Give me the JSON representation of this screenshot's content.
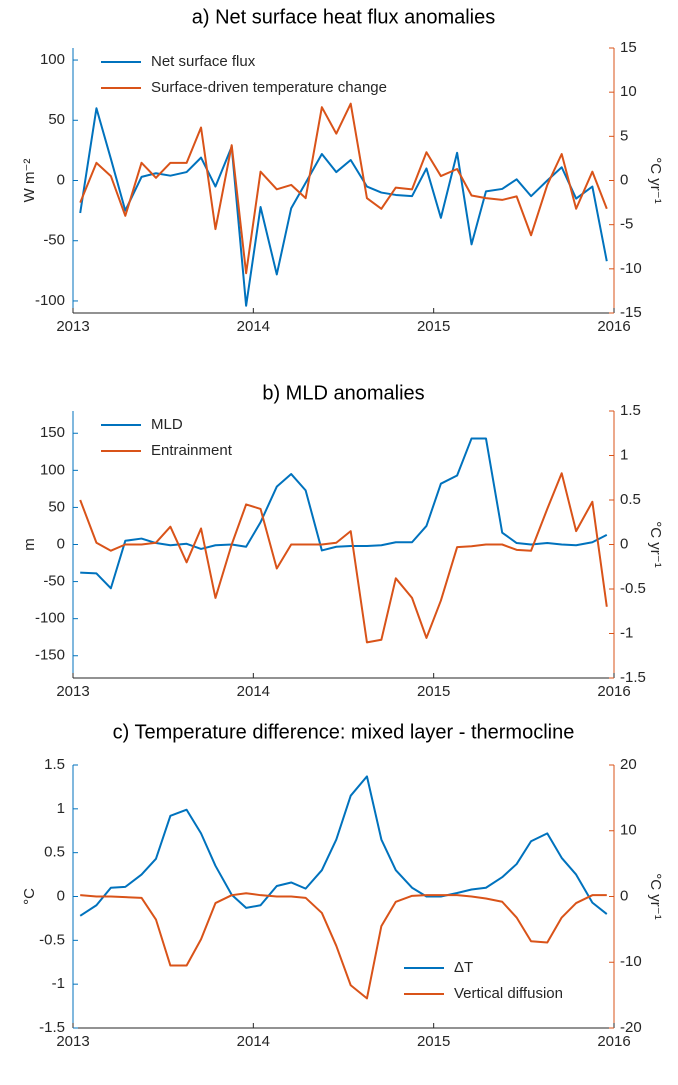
{
  "chart_data": [
    {
      "type": "line",
      "title": "a) Net surface heat flux anomalies",
      "ylabel": "W m⁻²",
      "y2label": "°C yr⁻¹",
      "x": [
        2013.04,
        2013.13,
        2013.21,
        2013.29,
        2013.38,
        2013.46,
        2013.54,
        2013.63,
        2013.71,
        2013.79,
        2013.88,
        2013.96,
        2014.04,
        2014.13,
        2014.21,
        2014.29,
        2014.38,
        2014.46,
        2014.54,
        2014.63,
        2014.71,
        2014.79,
        2014.88,
        2014.96,
        2015.04,
        2015.13,
        2015.21,
        2015.29,
        2015.38,
        2015.46,
        2015.54,
        2015.63,
        2015.71,
        2015.79,
        2015.88,
        2015.96
      ],
      "xlim": [
        2013,
        2016
      ],
      "xticks": [
        2013,
        2014,
        2015,
        2016
      ],
      "ylim": [
        -110,
        110
      ],
      "yticks": [
        -100,
        -50,
        0,
        50,
        100
      ],
      "y2lim": [
        -15,
        15
      ],
      "y2ticks": [
        -15,
        -10,
        -5,
        0,
        5,
        10,
        15
      ],
      "legend": "upper left",
      "series": [
        {
          "name": "Net surface flux",
          "color": "#0072BD",
          "values": [
            -27,
            60,
            18,
            -25,
            3,
            6,
            4,
            7,
            19,
            -5,
            28,
            -104,
            -22,
            -78,
            -23,
            -2,
            22,
            7,
            17,
            -5,
            -10,
            -12,
            -13,
            10,
            -31,
            23,
            -53,
            -9,
            -7,
            1,
            -13,
            0,
            11,
            -15,
            -5,
            -67
          ]
        },
        {
          "name": "Surface-driven temperature change",
          "color": "#D95319",
          "axis": "y2",
          "values": [
            -2.5,
            2,
            0.5,
            -4,
            2,
            0.3,
            2,
            2,
            6,
            -5.5,
            4,
            -10.5,
            1,
            -1,
            -0.5,
            -2,
            8.3,
            5.3,
            8.7,
            -2,
            -3.2,
            -0.8,
            -1,
            3.2,
            0.5,
            1.3,
            -1.7,
            -2,
            -2.2,
            -1.8,
            -6.2,
            -0.5,
            3,
            -3.2,
            1,
            -3.2
          ]
        }
      ]
    },
    {
      "type": "line",
      "title": "b) MLD anomalies",
      "ylabel": "m",
      "y2label": "°C yr⁻¹",
      "x": [
        2013.04,
        2013.13,
        2013.21,
        2013.29,
        2013.38,
        2013.46,
        2013.54,
        2013.63,
        2013.71,
        2013.79,
        2013.88,
        2013.96,
        2014.04,
        2014.13,
        2014.21,
        2014.29,
        2014.38,
        2014.46,
        2014.54,
        2014.63,
        2014.71,
        2014.79,
        2014.88,
        2014.96,
        2015.04,
        2015.13,
        2015.21,
        2015.29,
        2015.38,
        2015.46,
        2015.54,
        2015.63,
        2015.71,
        2015.79,
        2015.88,
        2015.96
      ],
      "xlim": [
        2013,
        2016
      ],
      "xticks": [
        2013,
        2014,
        2015,
        2016
      ],
      "ylim": [
        -180,
        180
      ],
      "yticks": [
        -150,
        -100,
        -50,
        0,
        50,
        100,
        150
      ],
      "y2lim": [
        -1.5,
        1.5
      ],
      "y2ticks": [
        -1.5,
        -1,
        -0.5,
        0,
        0.5,
        1,
        1.5
      ],
      "legend": "upper left",
      "series": [
        {
          "name": "MLD",
          "color": "#0072BD",
          "values": [
            -38,
            -39,
            -59,
            5,
            8,
            2,
            -1,
            1,
            -6,
            -1,
            0,
            -3,
            30,
            78,
            95,
            73,
            -8,
            -3,
            -2,
            -2,
            -1,
            3,
            3,
            25,
            82,
            93,
            143,
            143,
            16,
            2,
            0,
            2,
            0,
            -1,
            3,
            13
          ]
        },
        {
          "name": "Entrainment",
          "color": "#D95319",
          "axis": "y2",
          "values": [
            0.5,
            0.02,
            -0.07,
            0,
            0,
            0.02,
            0.2,
            -0.2,
            0.18,
            -0.6,
            0,
            0.45,
            0.4,
            -0.27,
            0,
            0,
            0,
            0.02,
            0.15,
            -1.1,
            -1.07,
            -0.38,
            -0.6,
            -1.05,
            -0.63,
            -0.03,
            -0.02,
            0,
            0,
            -0.06,
            -0.07,
            0.4,
            0.8,
            0.15,
            0.48,
            -0.7
          ]
        }
      ]
    },
    {
      "type": "line",
      "title": "c) Temperature difference: mixed layer - thermocline",
      "ylabel": "°C",
      "y2label": "°C yr⁻¹",
      "x": [
        2013.04,
        2013.13,
        2013.21,
        2013.29,
        2013.38,
        2013.46,
        2013.54,
        2013.63,
        2013.71,
        2013.79,
        2013.88,
        2013.96,
        2014.04,
        2014.13,
        2014.21,
        2014.29,
        2014.38,
        2014.46,
        2014.54,
        2014.63,
        2014.71,
        2014.79,
        2014.88,
        2014.96,
        2015.04,
        2015.13,
        2015.21,
        2015.29,
        2015.38,
        2015.46,
        2015.54,
        2015.63,
        2015.71,
        2015.79,
        2015.88,
        2015.96
      ],
      "xlim": [
        2013,
        2016
      ],
      "xticks": [
        2013,
        2014,
        2015,
        2016
      ],
      "ylim": [
        -1.5,
        1.5
      ],
      "yticks": [
        -1.5,
        -1,
        -0.5,
        0,
        0.5,
        1,
        1.5
      ],
      "y2lim": [
        -20,
        20
      ],
      "y2ticks": [
        -20,
        -10,
        0,
        10,
        20
      ],
      "legend": "lower right",
      "series": [
        {
          "name": "ΔT",
          "color": "#0072BD",
          "values": [
            -0.22,
            -0.1,
            0.1,
            0.11,
            0.25,
            0.43,
            0.92,
            0.99,
            0.72,
            0.35,
            0.02,
            -0.13,
            -0.1,
            0.12,
            0.16,
            0.09,
            0.3,
            0.65,
            1.15,
            1.37,
            0.65,
            0.3,
            0.1,
            0,
            0,
            0.04,
            0.08,
            0.1,
            0.22,
            0.37,
            0.63,
            0.72,
            0.44,
            0.25,
            -0.07,
            -0.2
          ]
        },
        {
          "name": "Vertical diffusion",
          "color": "#D95319",
          "axis": "y2",
          "values": [
            0.2,
            0,
            0,
            -0.1,
            -0.2,
            -3.5,
            -10.5,
            -10.5,
            -6.5,
            -1,
            0.2,
            0.5,
            0.2,
            0,
            0,
            -0.2,
            -2.5,
            -7.5,
            -13.5,
            -15.5,
            -4.5,
            -0.8,
            0.1,
            0.2,
            0.2,
            0.2,
            0,
            -0.3,
            -0.8,
            -3.2,
            -6.8,
            -7,
            -3.2,
            -1,
            0.2,
            0.2
          ]
        }
      ]
    }
  ]
}
